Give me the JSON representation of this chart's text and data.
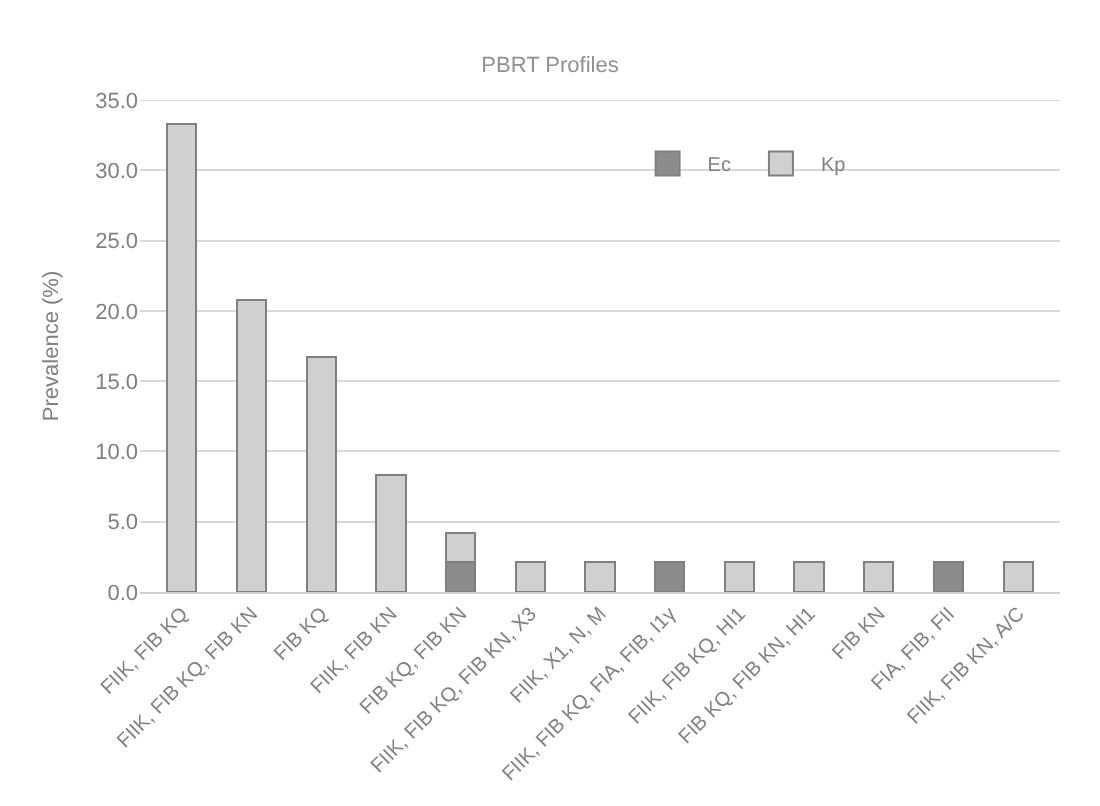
{
  "chart_data": {
    "type": "bar",
    "title": "PBRT Profiles",
    "ylabel": "Prevalence (%)",
    "categories": [
      "FIIK, FIB KQ",
      "FIIK, FIB KQ, FIB KN",
      "FIB KQ",
      "FIIK, FIB KN",
      "FIB KQ, FIB KN",
      "FIIK, FIB KQ, FIB KN, X3",
      "FIIK, X1, N, M",
      "FIIK, FIB KQ, FIA, FIB, I1γ",
      "FIIK, FIB KQ, HI1",
      "FIB KQ, FIB KN, HI1",
      "FIB KN",
      "FIA, FIB, FII",
      "FIIK, FIB KN, A/C"
    ],
    "stacked": true,
    "series": [
      {
        "name": "Ec",
        "color": "#8c8c8c",
        "values": [
          null,
          null,
          null,
          null,
          2.1,
          null,
          null,
          2.1,
          null,
          null,
          null,
          2.1,
          null
        ]
      },
      {
        "name": "Kp",
        "color": "#d0d0d0",
        "values": [
          33.3,
          20.8,
          16.7,
          8.3,
          2.1,
          2.1,
          2.1,
          null,
          2.1,
          2.1,
          2.1,
          null,
          2.1
        ]
      }
    ],
    "ylim": [
      0,
      35
    ],
    "yticks": [
      {
        "value": 0,
        "label": "0.0"
      },
      {
        "value": 5,
        "label": "5.0"
      },
      {
        "value": 10,
        "label": "10.0"
      },
      {
        "value": 15,
        "label": "15.0"
      },
      {
        "value": 20,
        "label": "20.0"
      },
      {
        "value": 25,
        "label": "25.0"
      },
      {
        "value": 30,
        "label": "30.0"
      },
      {
        "value": 35,
        "label": "35.0"
      }
    ],
    "grid": "y",
    "legend": "top right"
  }
}
